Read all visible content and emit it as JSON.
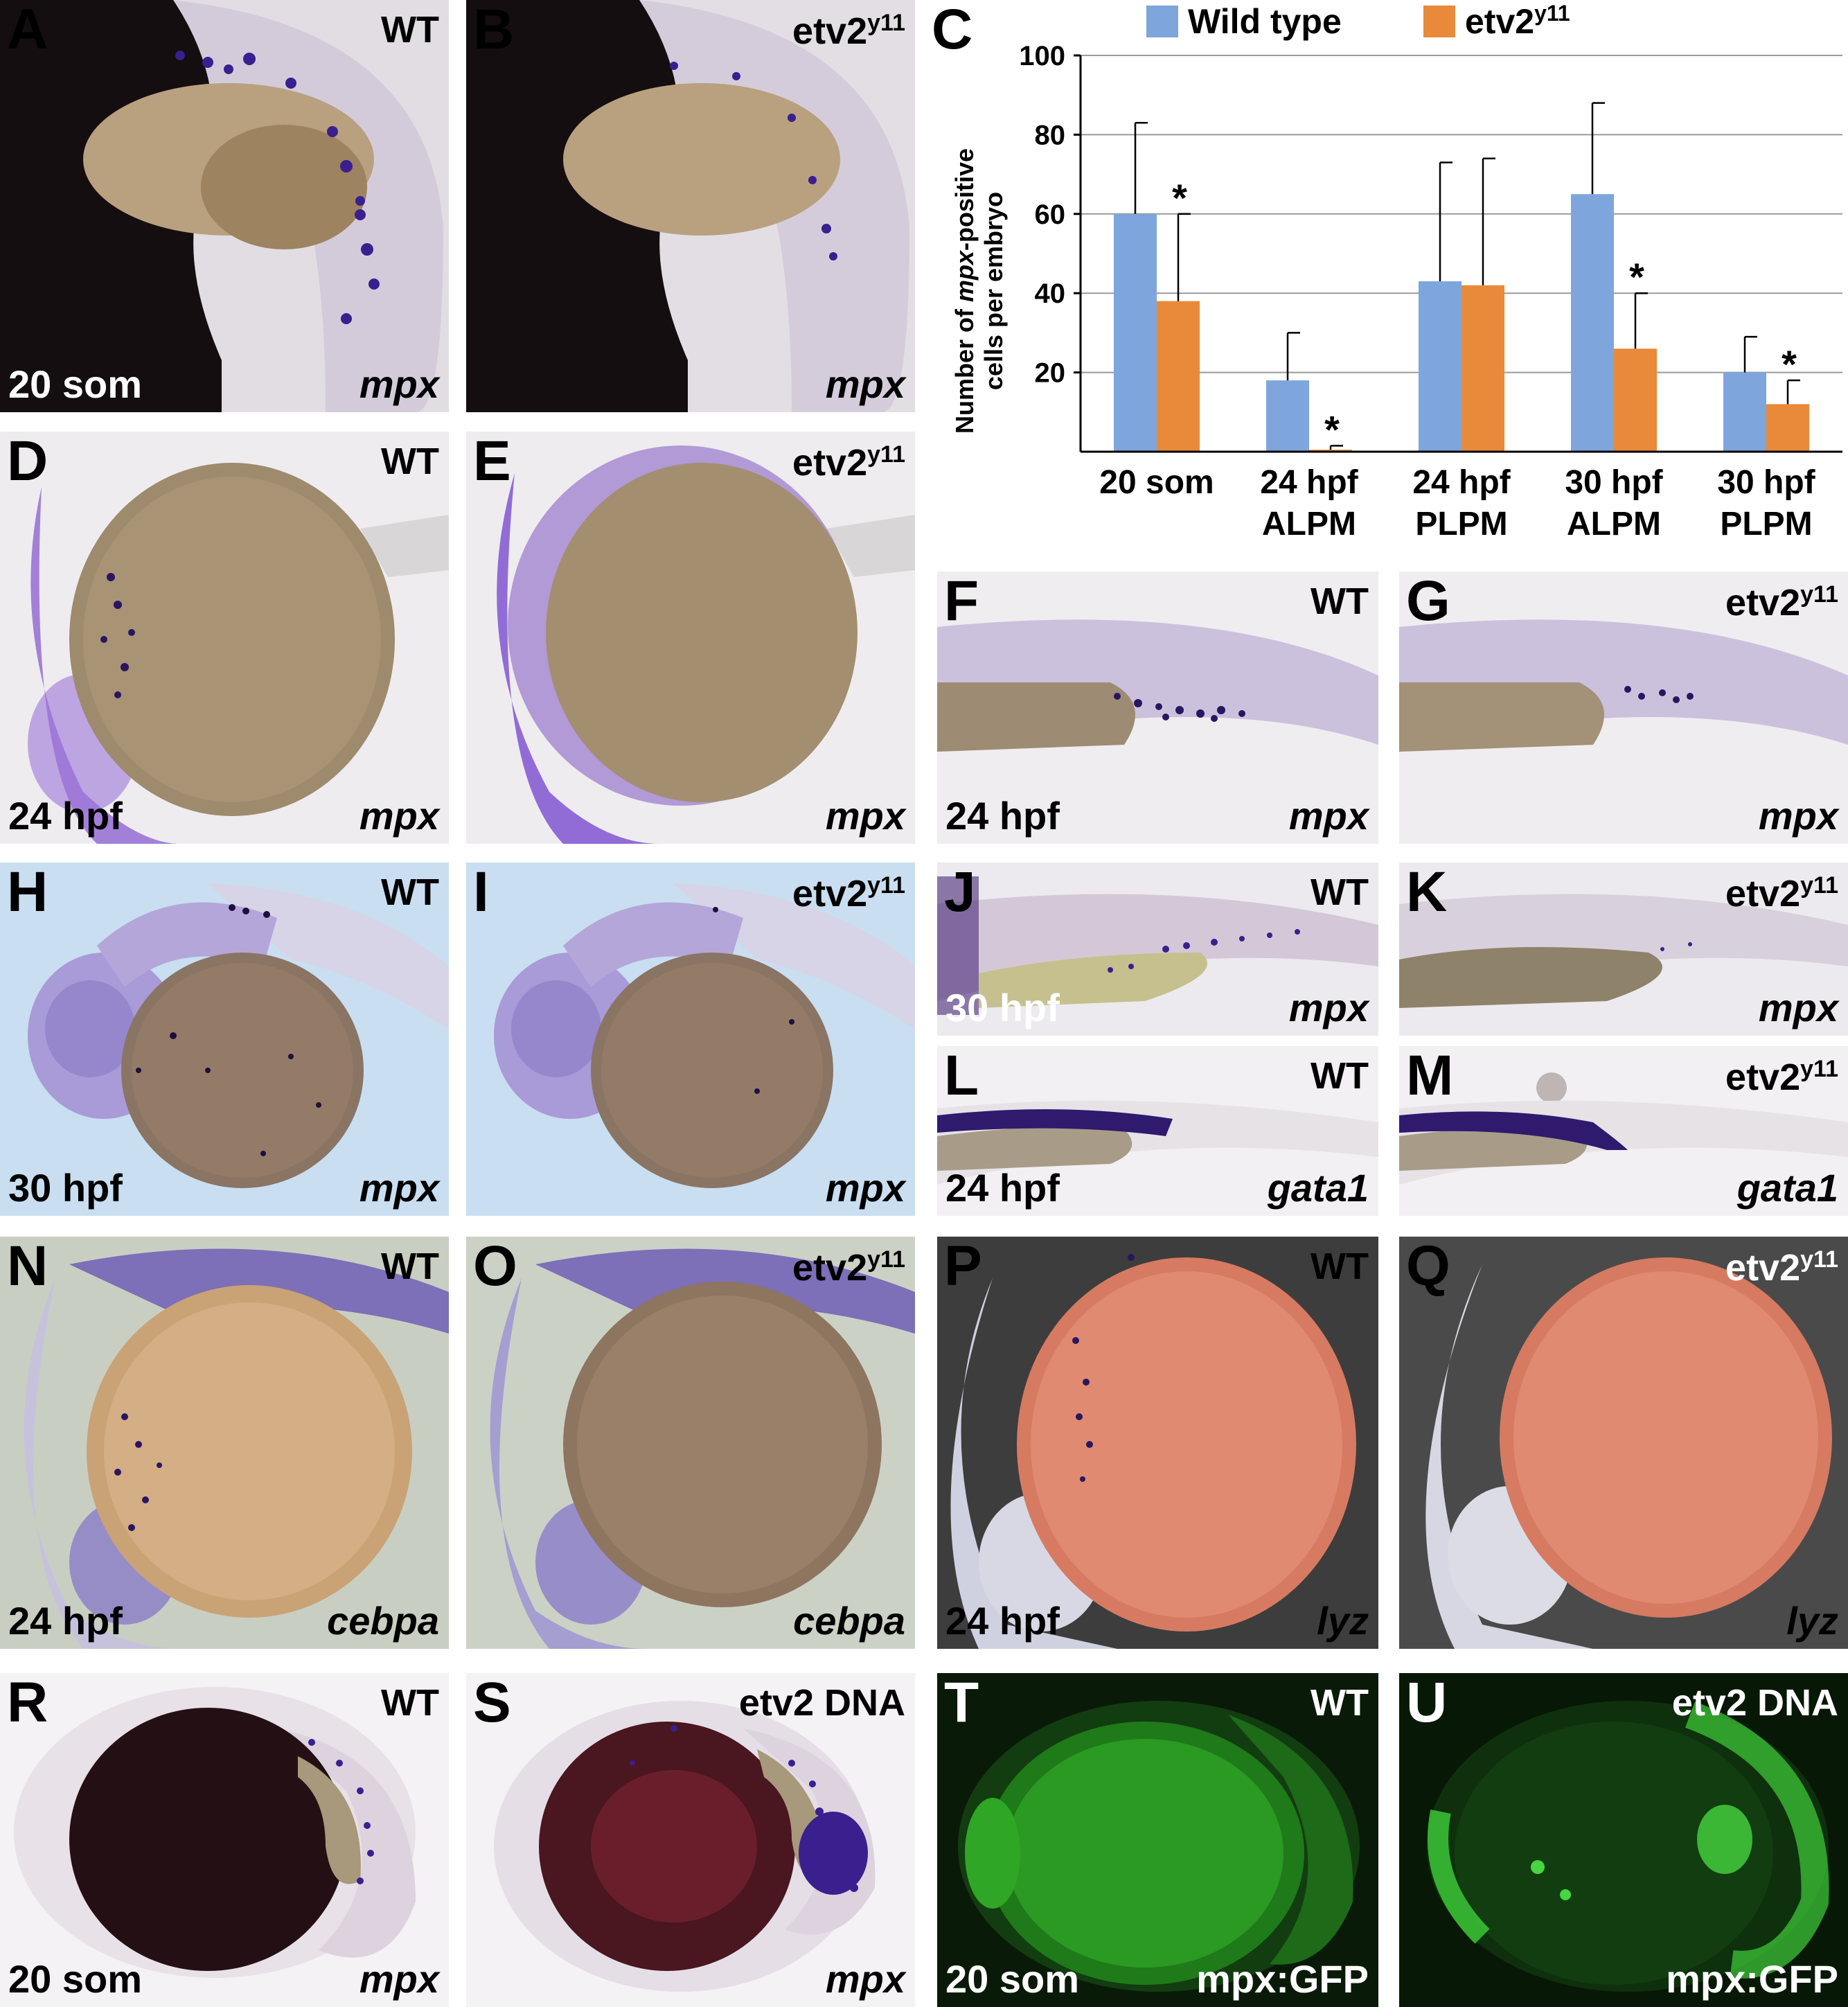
{
  "panels": [
    {
      "id": "A",
      "genotype": "WT",
      "stage": "20 som",
      "probe": "mpx"
    },
    {
      "id": "B",
      "genotype": "etv2",
      "genotype_sup": "y11",
      "stage": "",
      "probe": "mpx"
    },
    {
      "id": "D",
      "genotype": "WT",
      "stage": "24 hpf",
      "probe": "mpx"
    },
    {
      "id": "E",
      "genotype": "etv2",
      "genotype_sup": "y11",
      "stage": "",
      "probe": "mpx"
    },
    {
      "id": "F",
      "genotype": "WT",
      "stage": "24 hpf",
      "probe": "mpx"
    },
    {
      "id": "G",
      "genotype": "etv2",
      "genotype_sup": "y11",
      "stage": "",
      "probe": "mpx"
    },
    {
      "id": "H",
      "genotype": "WT",
      "stage": "30 hpf",
      "probe": "mpx"
    },
    {
      "id": "I",
      "genotype": "etv2",
      "genotype_sup": "y11",
      "stage": "",
      "probe": "mpx"
    },
    {
      "id": "J",
      "genotype": "WT",
      "stage": "30 hpf",
      "probe": "mpx"
    },
    {
      "id": "K",
      "genotype": "etv2",
      "genotype_sup": "y11",
      "stage": "",
      "probe": "mpx"
    },
    {
      "id": "L",
      "genotype": "WT",
      "stage": "24 hpf",
      "probe": "gata1"
    },
    {
      "id": "M",
      "genotype": "etv2",
      "genotype_sup": "y11",
      "stage": "",
      "probe": "gata1"
    },
    {
      "id": "N",
      "genotype": "WT",
      "stage": "24 hpf",
      "probe": "cebpa"
    },
    {
      "id": "O",
      "genotype": "etv2",
      "genotype_sup": "y11",
      "stage": "",
      "probe": "cebpa"
    },
    {
      "id": "P",
      "genotype": "WT",
      "stage": "24 hpf",
      "probe": "lyz"
    },
    {
      "id": "Q",
      "genotype": "etv2",
      "genotype_sup": "y11",
      "stage": "",
      "probe": "lyz"
    },
    {
      "id": "R",
      "genotype": "WT",
      "stage": "20 som",
      "probe": "mpx"
    },
    {
      "id": "S",
      "genotype": "etv2 DNA",
      "stage": "",
      "probe": "mpx"
    },
    {
      "id": "T",
      "genotype": "WT",
      "stage": "20 som",
      "probe": "mpx:GFP"
    },
    {
      "id": "U",
      "genotype": "etv2 DNA",
      "stage": "",
      "probe": "mpx:GFP"
    }
  ],
  "chart_data": {
    "panel_label": "C",
    "type": "bar",
    "categories": [
      [
        "20 som"
      ],
      [
        "24 hpf",
        "ALPM"
      ],
      [
        "24 hpf",
        "PLPM"
      ],
      [
        "30 hpf",
        "ALPM"
      ],
      [
        "30 hpf",
        "PLPM"
      ]
    ],
    "ylabel_parts": [
      "Number of ",
      "mpx",
      "-positive"
    ],
    "ylabel_line2": "cells per embryo",
    "ylim": [
      0,
      100
    ],
    "yticks": [
      20,
      40,
      60,
      80,
      100
    ],
    "grid": true,
    "legend_position": "top",
    "series": [
      {
        "name": "Wild type",
        "color": "#7ea6dc",
        "values": [
          60,
          18,
          43,
          65,
          20
        ],
        "errors": [
          23,
          12,
          30,
          23,
          9
        ],
        "stars": [
          false,
          false,
          false,
          false,
          false
        ]
      },
      {
        "name": "etv2",
        "name_sup": "y11",
        "color": "#e88a3a",
        "values": [
          38,
          0.5,
          42,
          26,
          12
        ],
        "errors": [
          22,
          1,
          32,
          14,
          6
        ],
        "stars": [
          true,
          true,
          false,
          true,
          true
        ]
      }
    ],
    "star_symbol": "*"
  },
  "colors": {
    "stain": "#3a1f8f",
    "yolk": "#8d7a62",
    "gfp": "#3fcf3a"
  }
}
